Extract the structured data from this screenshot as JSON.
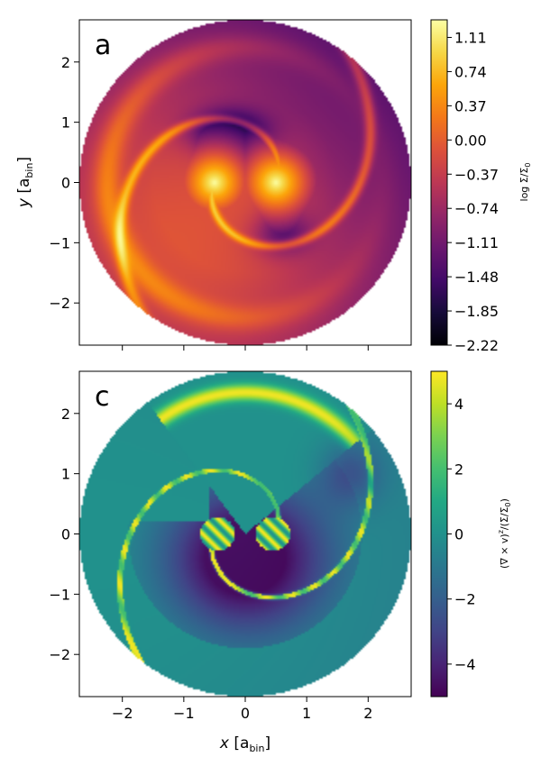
{
  "chart_data": [
    {
      "type": "heatmap",
      "panel_label": "a",
      "quantity": "log surface density",
      "colormap": "inferno",
      "xlim": [
        -2.7,
        2.7
      ],
      "ylim": [
        -2.7,
        2.7
      ],
      "disk_radius": 2.7,
      "x_ticks": [
        -2,
        -1,
        0,
        1,
        2
      ],
      "y_ticks": [
        -2,
        -1,
        0,
        1,
        2
      ],
      "y_tick_labels": [
        "−2",
        "−1",
        "0",
        "1",
        "2"
      ],
      "ylabel": {
        "main": "y",
        "unit_open": " [a",
        "unit_sub": "bin",
        "unit_close": "]"
      },
      "colorbar": {
        "range": [
          -2.22,
          1.3
        ],
        "label": "log Σ/Σ",
        "label_sub": "0",
        "ticks": [
          1.11,
          0.74,
          0.37,
          0.0,
          -0.37,
          -0.74,
          -1.11,
          -1.48,
          -1.85,
          -2.22
        ],
        "tick_labels": [
          "1.11",
          "0.74",
          "0.37",
          "0.00",
          "−0.37",
          "−0.74",
          "−1.11",
          "−1.48",
          "−1.85",
          "−2.22"
        ]
      },
      "features": {
        "binary_positions": [
          [
            -0.5,
            0.0
          ],
          [
            0.5,
            0.0
          ]
        ],
        "background_value": -0.6,
        "cavity_value": -1.6,
        "peak_value": 1.3
      }
    },
    {
      "type": "heatmap",
      "panel_label": "c",
      "quantity": "normalized vorticity",
      "colormap": "viridis",
      "xlim": [
        -2.7,
        2.7
      ],
      "ylim": [
        -2.7,
        2.7
      ],
      "disk_radius": 2.7,
      "x_ticks": [
        -2,
        -1,
        0,
        1,
        2
      ],
      "y_ticks": [
        -2,
        -1,
        0,
        1,
        2
      ],
      "x_tick_labels": [
        "−2",
        "−1",
        "0",
        "1",
        "2"
      ],
      "y_tick_labels": [
        "−2",
        "−1",
        "0",
        "1",
        "2"
      ],
      "xlabel": {
        "main": "x",
        "unit_open": " [a",
        "unit_sub": "bin",
        "unit_close": "]"
      },
      "colorbar": {
        "range": [
          -5,
          5
        ],
        "label": "(∇ × v)",
        "label_tail": "/(Σ/Σ",
        "label_end": ")",
        "label_sup": "z",
        "label_sub": "0",
        "ticks": [
          4,
          2,
          0,
          -2,
          -4
        ],
        "tick_labels": [
          "4",
          "2",
          "0",
          "−2",
          "−4"
        ]
      },
      "features": {
        "background_value": 0.0,
        "cavity_value": -4.6,
        "arm_value": 4.8
      }
    }
  ]
}
